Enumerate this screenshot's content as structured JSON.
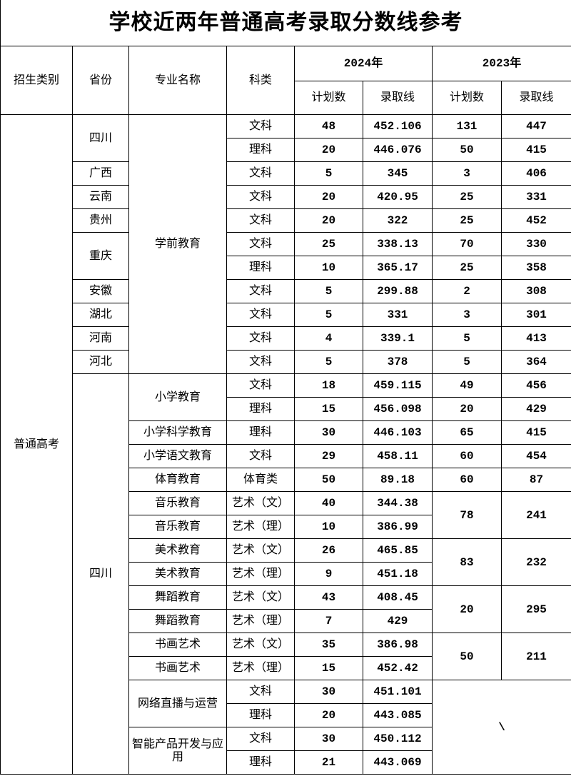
{
  "title": "学校近两年普通高考录取分数线参考",
  "headers": {
    "category": "招生类别",
    "province": "省份",
    "major": "专业名称",
    "subject": "科类",
    "y2024": "2024年",
    "y2023": "2023年",
    "plan": "计划数",
    "score": "录取线"
  },
  "category": "普通高考",
  "rows": [
    {
      "p": "四川",
      "m": "学前教育",
      "s": "文科",
      "a": "48",
      "b": "452.106",
      "c": "131",
      "d": "447"
    },
    {
      "s": "理科",
      "a": "20",
      "b": "446.076",
      "c": "50",
      "d": "415"
    },
    {
      "p": "广西",
      "s": "文科",
      "a": "5",
      "b": "345",
      "c": "3",
      "d": "406"
    },
    {
      "p": "云南",
      "s": "文科",
      "a": "20",
      "b": "420.95",
      "c": "25",
      "d": "331"
    },
    {
      "p": "贵州",
      "s": "文科",
      "a": "20",
      "b": "322",
      "c": "25",
      "d": "452"
    },
    {
      "p": "重庆",
      "s": "文科",
      "a": "25",
      "b": "338.13",
      "c": "70",
      "d": "330"
    },
    {
      "s": "理科",
      "a": "10",
      "b": "365.17",
      "c": "25",
      "d": "358"
    },
    {
      "p": "安徽",
      "s": "文科",
      "a": "5",
      "b": "299.88",
      "c": "2",
      "d": "308"
    },
    {
      "p": "湖北",
      "s": "文科",
      "a": "5",
      "b": "331",
      "c": "3",
      "d": "301"
    },
    {
      "p": "河南",
      "s": "文科",
      "a": "4",
      "b": "339.1",
      "c": "5",
      "d": "413"
    },
    {
      "p": "河北",
      "s": "文科",
      "a": "5",
      "b": "378",
      "c": "5",
      "d": "364"
    },
    {
      "p": "四川",
      "m": "小学教育",
      "s": "文科",
      "a": "18",
      "b": "459.115",
      "c": "49",
      "d": "456"
    },
    {
      "s": "理科",
      "a": "15",
      "b": "456.098",
      "c": "20",
      "d": "429"
    },
    {
      "m": "小学科学教育",
      "s": "理科",
      "a": "30",
      "b": "446.103",
      "c": "65",
      "d": "415"
    },
    {
      "m": "小学语文教育",
      "s": "文科",
      "a": "29",
      "b": "458.11",
      "c": "60",
      "d": "454"
    },
    {
      "m": "体育教育",
      "s": "体育类",
      "a": "50",
      "b": "89.18",
      "c": "60",
      "d": "87"
    },
    {
      "m": "音乐教育",
      "s": "艺术（文）",
      "a": "40",
      "b": "344.38",
      "c": "78",
      "d": "241"
    },
    {
      "m": "音乐教育",
      "s": "艺术（理）",
      "a": "10",
      "b": "386.99"
    },
    {
      "m": "美术教育",
      "s": "艺术（文）",
      "a": "26",
      "b": "465.85",
      "c": "83",
      "d": "232"
    },
    {
      "m": "美术教育",
      "s": "艺术（理）",
      "a": "9",
      "b": "451.18"
    },
    {
      "m": "舞蹈教育",
      "s": "艺术（文）",
      "a": "43",
      "b": "408.45",
      "c": "20",
      "d": "295"
    },
    {
      "m": "舞蹈教育",
      "s": "艺术（理）",
      "a": "7",
      "b": "429"
    },
    {
      "m": "书画艺术",
      "s": "艺术（文）",
      "a": "35",
      "b": "386.98",
      "c": "50",
      "d": "211"
    },
    {
      "m": "书画艺术",
      "s": "艺术（理）",
      "a": "15",
      "b": "452.42"
    },
    {
      "m": "网络直播与运营",
      "s": "文科",
      "a": "30",
      "b": "451.101",
      "c": "\\"
    },
    {
      "s": "理科",
      "a": "20",
      "b": "443.085"
    },
    {
      "m": "智能产品开发与应用",
      "s": "文科",
      "a": "30",
      "b": "450.112"
    },
    {
      "s": "理科",
      "a": "21",
      "b": "443.069"
    }
  ]
}
